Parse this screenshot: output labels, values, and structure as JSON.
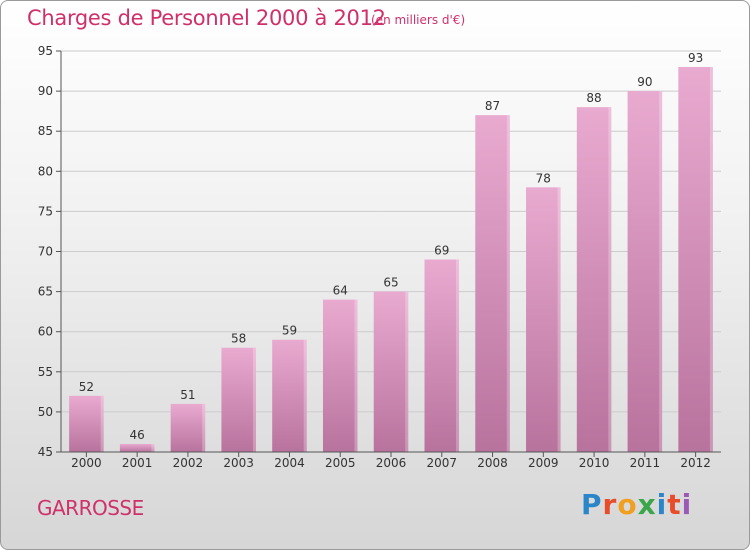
{
  "header": {
    "title": "Charges de Personnel 2000 à 2012",
    "subtitle": "(en milliers d'€)"
  },
  "footer": {
    "commune": "GARROSSE",
    "logo": "Proxiti",
    "logo_letters": [
      {
        "ch": "P",
        "color": "#2a86c9"
      },
      {
        "ch": "r",
        "color": "#e84d2b"
      },
      {
        "ch": "o",
        "color": "#f0a020"
      },
      {
        "ch": "x",
        "color": "#3aa64a"
      },
      {
        "ch": "i",
        "color": "#2a86c9"
      },
      {
        "ch": "t",
        "color": "#e84d2b"
      },
      {
        "ch": "i",
        "color": "#9b59b6"
      }
    ]
  },
  "colors": {
    "bar_top": "#e9aad0",
    "bar_bottom": "#b8739d",
    "axis": "#555555",
    "grid": "#cccccc",
    "accent": "#d0306a"
  },
  "chart_data": {
    "type": "bar",
    "title": "Charges de Personnel 2000 à 2012",
    "subtitle": "(en milliers d'€)",
    "categories": [
      "2000",
      "2001",
      "2002",
      "2003",
      "2004",
      "2005",
      "2006",
      "2007",
      "2008",
      "2009",
      "2010",
      "2011",
      "2012"
    ],
    "values": [
      52,
      46,
      51,
      58,
      59,
      64,
      65,
      69,
      87,
      78,
      88,
      90,
      93
    ],
    "ylim": [
      45,
      95
    ],
    "yticks": [
      45,
      50,
      55,
      60,
      65,
      70,
      75,
      80,
      85,
      90,
      95
    ],
    "grid": true
  }
}
